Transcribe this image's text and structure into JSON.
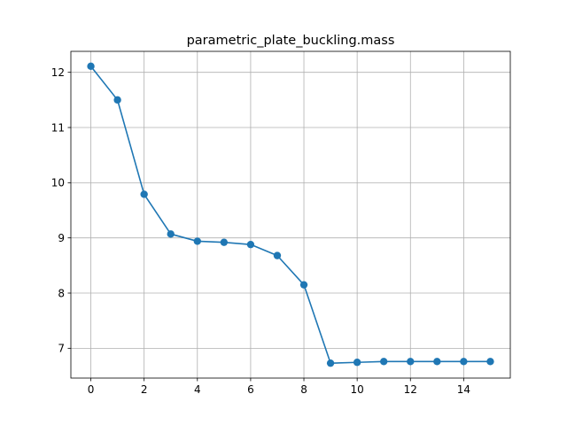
{
  "chart_data": {
    "type": "line",
    "title": "parametric_plate_buckling.mass",
    "xlabel": "",
    "ylabel": "",
    "x": [
      0,
      1,
      2,
      3,
      4,
      5,
      6,
      7,
      8,
      9,
      10,
      11,
      12,
      13,
      14,
      15
    ],
    "series": [
      {
        "values": [
          12.11,
          11.5,
          9.79,
          9.07,
          8.94,
          8.92,
          8.88,
          8.68,
          8.15,
          6.73,
          6.745,
          6.76,
          6.76,
          6.76,
          6.76,
          6.76
        ],
        "color": "#1f77b4",
        "marker": "circle"
      }
    ],
    "xlim": [
      -0.75,
      15.75
    ],
    "ylim": [
      6.46,
      12.38
    ],
    "xticks": [
      0,
      2,
      4,
      6,
      8,
      10,
      12,
      14
    ],
    "yticks": [
      7,
      8,
      9,
      10,
      11,
      12
    ],
    "grid": true,
    "legend": "none"
  }
}
